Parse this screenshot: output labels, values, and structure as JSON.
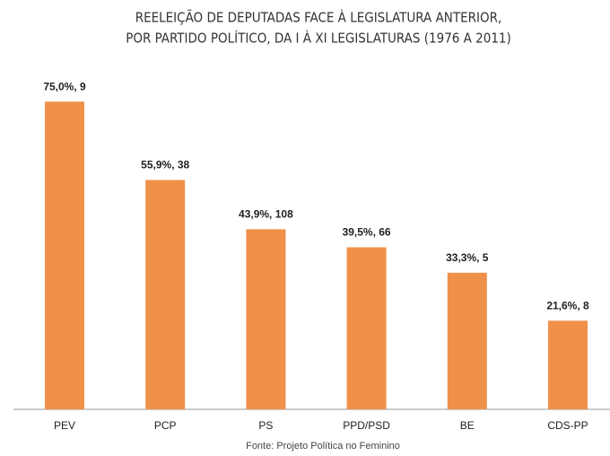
{
  "chart_data": {
    "type": "bar",
    "title": [
      "REELEIÇÃO DE DEPUTADAS FACE À LEGISLATURA ANTERIOR,",
      "POR PARTIDO POLÍTICO, DA I À XI LEGISLATURAS (1976 A 2011)"
    ],
    "categories": [
      "PEV",
      "PCP",
      "PS",
      "PPD/PSD",
      "BE",
      "CDS-PP"
    ],
    "values": [
      75.0,
      55.9,
      43.9,
      39.5,
      33.3,
      21.6
    ],
    "value_labels": [
      "75,0%, 9",
      "55,9%, 38",
      "43,9%, 108",
      "39,5%, 66",
      "33,3%, 5",
      "21,6%, 8"
    ],
    "color": "#f0914a",
    "source": "Fonte: Projeto Política no Feminino"
  }
}
